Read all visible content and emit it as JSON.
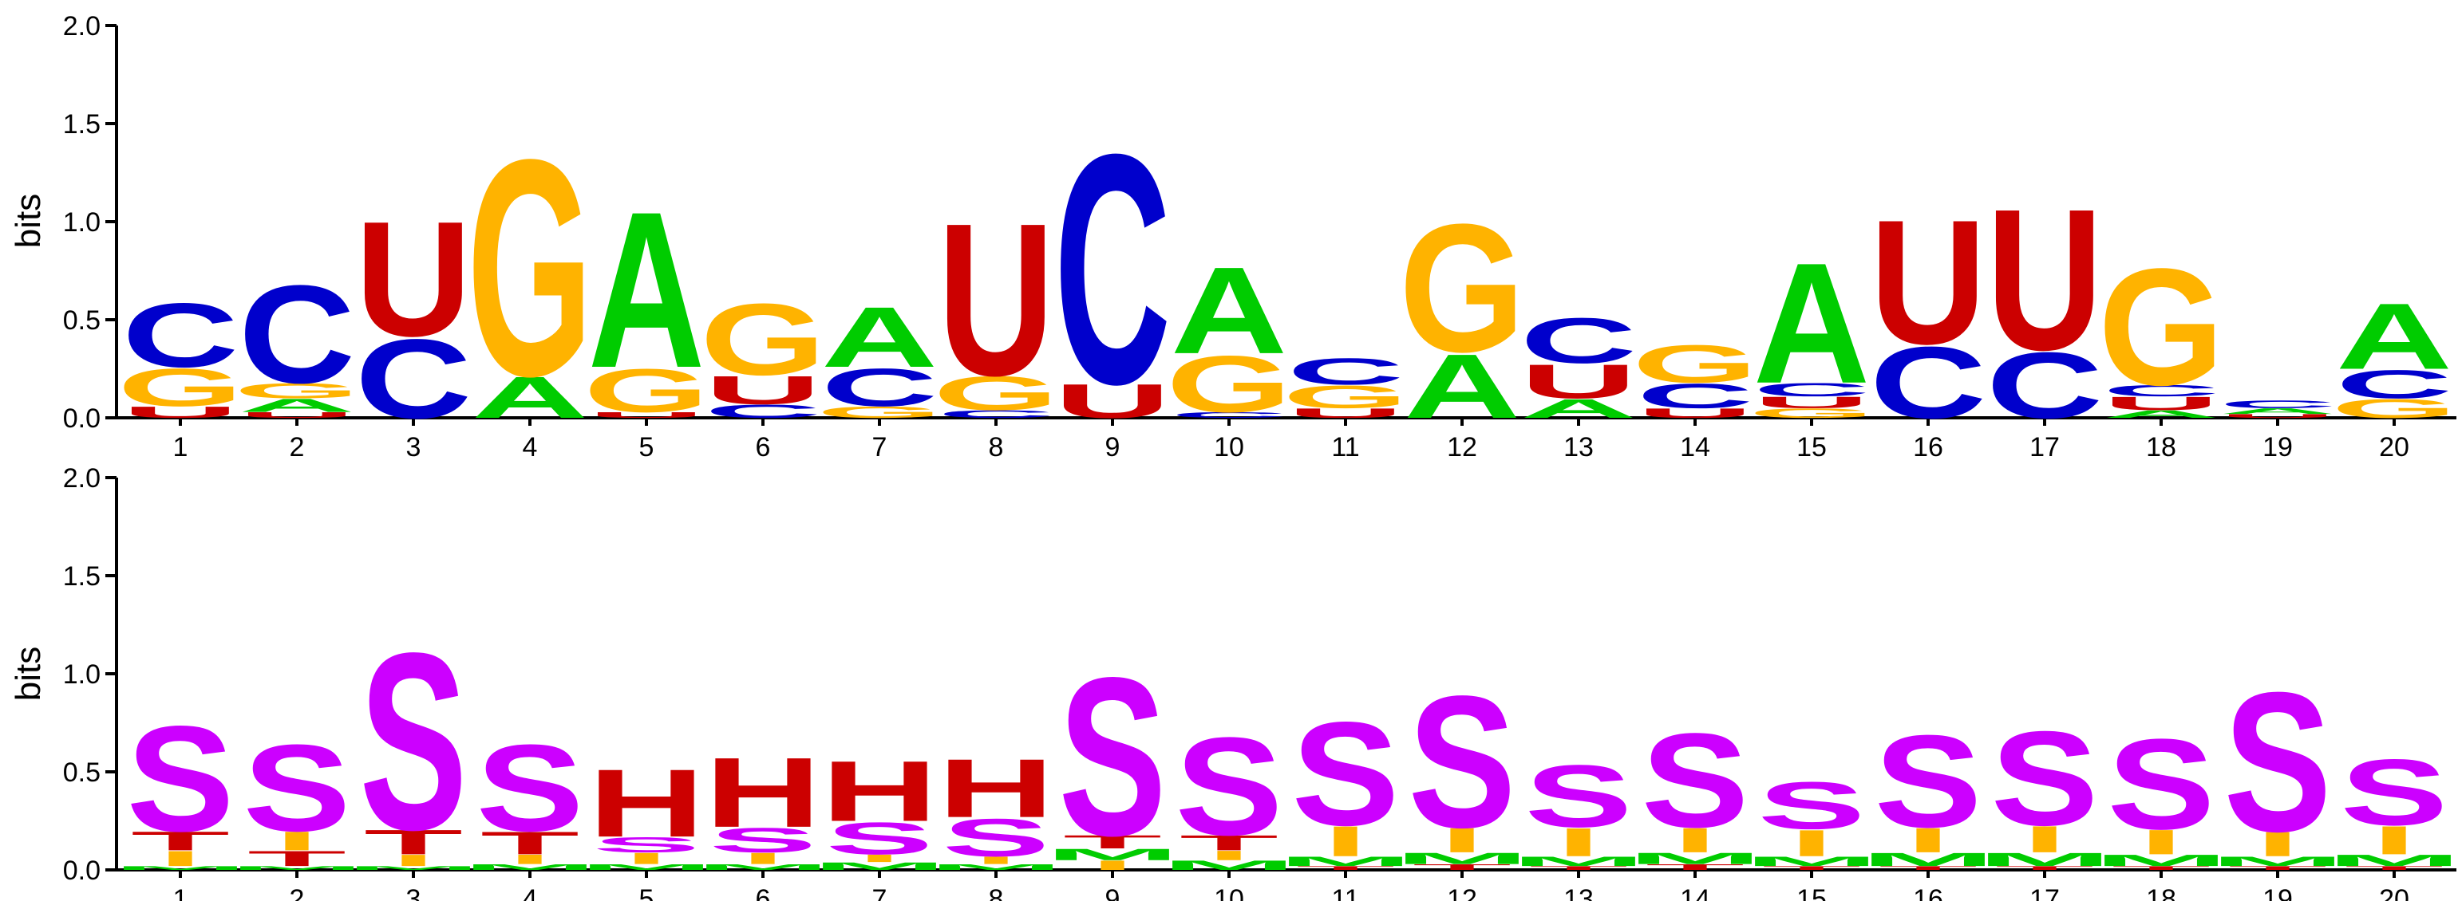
{
  "chart_data": [
    {
      "type": "sequence-logo",
      "ylabel": "bits",
      "ylim": [
        0,
        2.0
      ],
      "yticks": [
        "0.0",
        "0.5",
        "1.0",
        "1.5",
        "2.0"
      ],
      "positions": [
        "1",
        "2",
        "3",
        "4",
        "5",
        "6",
        "7",
        "8",
        "9",
        "10",
        "11",
        "12",
        "13",
        "14",
        "15",
        "16",
        "17",
        "18",
        "19",
        "20"
      ],
      "stacks": [
        [
          {
            "l": "U",
            "h": 0.06
          },
          {
            "l": "G",
            "h": 0.2
          },
          {
            "l": "C",
            "h": 0.34
          }
        ],
        [
          {
            "l": "U",
            "h": 0.03
          },
          {
            "l": "A",
            "h": 0.07
          },
          {
            "l": "G",
            "h": 0.08
          },
          {
            "l": "C",
            "h": 0.52
          }
        ],
        [
          {
            "l": "C",
            "h": 0.42
          },
          {
            "l": "U",
            "h": 0.61
          }
        ],
        [
          {
            "l": "A",
            "h": 0.22
          },
          {
            "l": "G",
            "h": 1.15
          }
        ],
        [
          {
            "l": "U",
            "h": 0.03
          },
          {
            "l": "G",
            "h": 0.23
          },
          {
            "l": "A",
            "h": 0.83
          }
        ],
        [
          {
            "l": "C",
            "h": 0.07
          },
          {
            "l": "U",
            "h": 0.15
          },
          {
            "l": "G",
            "h": 0.38
          }
        ],
        [
          {
            "l": "G",
            "h": 0.06
          },
          {
            "l": "C",
            "h": 0.2
          },
          {
            "l": "A",
            "h": 0.32
          }
        ],
        [
          {
            "l": "C",
            "h": 0.04
          },
          {
            "l": "G",
            "h": 0.18
          },
          {
            "l": "U",
            "h": 0.81
          }
        ],
        [
          {
            "l": "U",
            "h": 0.18
          },
          {
            "l": "C",
            "h": 1.22
          }
        ],
        [
          {
            "l": "C",
            "h": 0.03
          },
          {
            "l": "G",
            "h": 0.3
          },
          {
            "l": "A",
            "h": 0.46
          }
        ],
        [
          {
            "l": "U",
            "h": 0.05
          },
          {
            "l": "G",
            "h": 0.12
          },
          {
            "l": "C",
            "h": 0.14
          }
        ],
        [
          {
            "l": "A",
            "h": 0.34
          },
          {
            "l": "G",
            "h": 0.68
          }
        ],
        [
          {
            "l": "A",
            "h": 0.1
          },
          {
            "l": "U",
            "h": 0.18
          },
          {
            "l": "C",
            "h": 0.24
          }
        ],
        [
          {
            "l": "U",
            "h": 0.05
          },
          {
            "l": "C",
            "h": 0.13
          },
          {
            "l": "G",
            "h": 0.2
          }
        ],
        [
          {
            "l": "G",
            "h": 0.05
          },
          {
            "l": "U",
            "h": 0.06
          },
          {
            "l": "C",
            "h": 0.07
          },
          {
            "l": "A",
            "h": 0.64
          }
        ],
        [
          {
            "l": "C",
            "h": 0.38
          },
          {
            "l": "U",
            "h": 0.66
          }
        ],
        [
          {
            "l": "C",
            "h": 0.35
          },
          {
            "l": "U",
            "h": 0.75
          }
        ],
        [
          {
            "l": "A",
            "h": 0.04
          },
          {
            "l": "U",
            "h": 0.07
          },
          {
            "l": "C",
            "h": 0.06
          },
          {
            "l": "G",
            "h": 0.62
          }
        ],
        [
          {
            "l": "U",
            "h": 0.02
          },
          {
            "l": "A",
            "h": 0.03
          },
          {
            "l": "C",
            "h": 0.04
          }
        ],
        [
          {
            "l": "G",
            "h": 0.1
          },
          {
            "l": "C",
            "h": 0.15
          },
          {
            "l": "A",
            "h": 0.35
          }
        ]
      ]
    },
    {
      "type": "sequence-logo",
      "ylabel": "bits",
      "ylim": [
        0,
        2.0
      ],
      "yticks": [
        "0.0",
        "0.5",
        "1.0",
        "1.5",
        "2.0"
      ],
      "positions": [
        "1",
        "2",
        "3",
        "4",
        "5",
        "6",
        "7",
        "8",
        "9",
        "10",
        "11",
        "12",
        "13",
        "14",
        "15",
        "16",
        "17",
        "18",
        "19",
        "20"
      ],
      "stacks": [
        [
          {
            "l": "M",
            "h": 0.02
          },
          {
            "l": "I",
            "h": 0.08
          },
          {
            "l": "T",
            "h": 0.1
          },
          {
            "l": "S",
            "h": 0.56
          }
        ],
        [
          {
            "l": "M",
            "h": 0.02
          },
          {
            "l": "T",
            "h": 0.08
          },
          {
            "l": "I",
            "h": 0.1
          },
          {
            "l": "S",
            "h": 0.46
          }
        ],
        [
          {
            "l": "M",
            "h": 0.02
          },
          {
            "l": "I",
            "h": 0.06
          },
          {
            "l": "T",
            "h": 0.13
          },
          {
            "l": "S",
            "h": 0.94
          }
        ],
        [
          {
            "l": "M",
            "h": 0.03
          },
          {
            "l": "I",
            "h": 0.05
          },
          {
            "l": "T",
            "h": 0.12
          },
          {
            "l": "S",
            "h": 0.46
          }
        ],
        [
          {
            "l": "M",
            "h": 0.03
          },
          {
            "l": "I",
            "h": 0.06
          },
          {
            "l": "S",
            "h": 0.08
          },
          {
            "l": "H",
            "h": 0.36
          }
        ],
        [
          {
            "l": "M",
            "h": 0.03
          },
          {
            "l": "I",
            "h": 0.06
          },
          {
            "l": "S",
            "h": 0.13
          },
          {
            "l": "H",
            "h": 0.37
          }
        ],
        [
          {
            "l": "M",
            "h": 0.04
          },
          {
            "l": "I",
            "h": 0.04
          },
          {
            "l": "S",
            "h": 0.17
          },
          {
            "l": "H",
            "h": 0.32
          }
        ],
        [
          {
            "l": "M",
            "h": 0.03
          },
          {
            "l": "I",
            "h": 0.04
          },
          {
            "l": "S",
            "h": 0.2
          },
          {
            "l": "H",
            "h": 0.31
          }
        ],
        [
          {
            "l": "I",
            "h": 0.05
          },
          {
            "l": "M",
            "h": 0.06
          },
          {
            "l": "T",
            "h": 0.07
          },
          {
            "l": "S",
            "h": 0.84
          }
        ],
        [
          {
            "l": "M",
            "h": 0.05
          },
          {
            "l": "I",
            "h": 0.05
          },
          {
            "l": "T",
            "h": 0.08
          },
          {
            "l": "S",
            "h": 0.52
          }
        ],
        [
          {
            "l": "T",
            "h": 0.02
          },
          {
            "l": "M",
            "h": 0.05
          },
          {
            "l": "I",
            "h": 0.16
          },
          {
            "l": "S",
            "h": 0.55
          }
        ],
        [
          {
            "l": "T",
            "h": 0.03
          },
          {
            "l": "M",
            "h": 0.06
          },
          {
            "l": "I",
            "h": 0.13
          },
          {
            "l": "S",
            "h": 0.7
          }
        ],
        [
          {
            "l": "T",
            "h": 0.02
          },
          {
            "l": "M",
            "h": 0.05
          },
          {
            "l": "I",
            "h": 0.15
          },
          {
            "l": "S",
            "h": 0.33
          }
        ],
        [
          {
            "l": "T",
            "h": 0.03
          },
          {
            "l": "M",
            "h": 0.06
          },
          {
            "l": "I",
            "h": 0.13
          },
          {
            "l": "S",
            "h": 0.5
          }
        ],
        [
          {
            "l": "T",
            "h": 0.02
          },
          {
            "l": "M",
            "h": 0.05
          },
          {
            "l": "I",
            "h": 0.14
          },
          {
            "l": "S",
            "h": 0.25
          }
        ],
        [
          {
            "l": "T",
            "h": 0.02
          },
          {
            "l": "M",
            "h": 0.07
          },
          {
            "l": "I",
            "h": 0.13
          },
          {
            "l": "S",
            "h": 0.49
          }
        ],
        [
          {
            "l": "T",
            "h": 0.02
          },
          {
            "l": "M",
            "h": 0.07
          },
          {
            "l": "I",
            "h": 0.14
          },
          {
            "l": "S",
            "h": 0.5
          }
        ],
        [
          {
            "l": "T",
            "h": 0.02
          },
          {
            "l": "M",
            "h": 0.06
          },
          {
            "l": "I",
            "h": 0.13
          },
          {
            "l": "S",
            "h": 0.48
          }
        ],
        [
          {
            "l": "T",
            "h": 0.02
          },
          {
            "l": "M",
            "h": 0.05
          },
          {
            "l": "I",
            "h": 0.13
          },
          {
            "l": "S",
            "h": 0.74
          }
        ],
        [
          {
            "l": "T",
            "h": 0.02
          },
          {
            "l": "M",
            "h": 0.06
          },
          {
            "l": "I",
            "h": 0.15
          },
          {
            "l": "S",
            "h": 0.35
          }
        ]
      ]
    }
  ],
  "colors": {
    "A": "#00cc00",
    "C": "#0000cc",
    "G": "#ffb300",
    "U": "#cc0000",
    "S": "#cc00ff",
    "H": "#cc0000",
    "I": "#ffb300",
    "M": "#00cc00",
    "T": "#cc0000"
  }
}
